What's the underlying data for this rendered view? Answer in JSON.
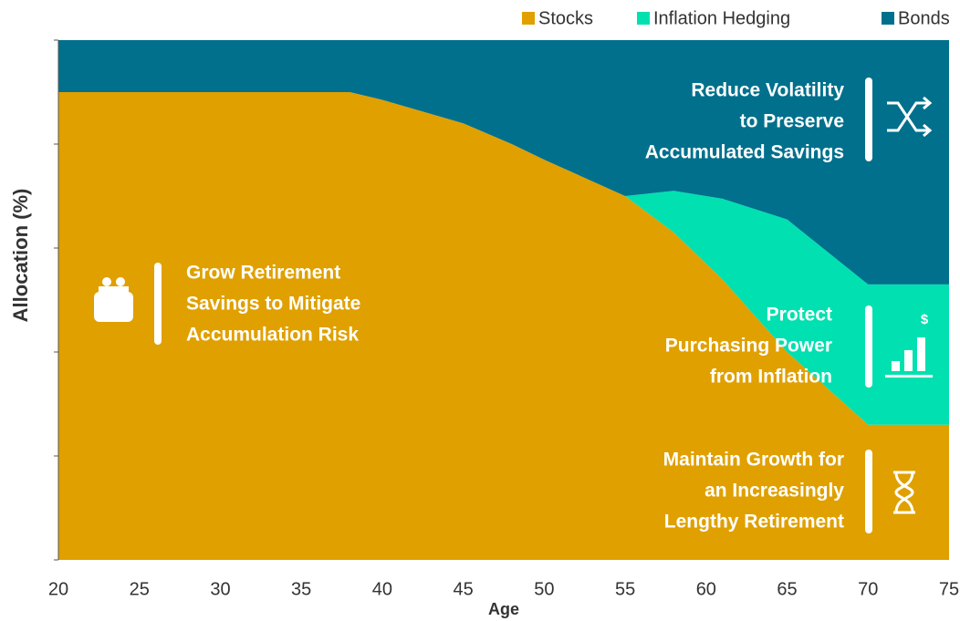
{
  "chart_data": {
    "type": "stacked_area",
    "x": [
      20,
      25,
      30,
      35,
      38,
      40,
      45,
      48,
      50,
      55,
      58,
      60,
      61,
      65,
      70,
      75
    ],
    "series": [
      {
        "name": "Stocks",
        "color": "#e0a000",
        "values": [
          90,
          90,
          90,
          90,
          90,
          88.5,
          84,
          80,
          77,
          70,
          63,
          57,
          54,
          40,
          26,
          26
        ]
      },
      {
        "name": "Inflation Hedging",
        "color": "#00e0b0",
        "values": [
          0,
          0,
          0,
          0,
          0,
          0,
          0,
          0,
          0,
          0,
          8,
          13,
          15.5,
          25.5,
          27,
          27
        ]
      },
      {
        "name": "Bonds",
        "color": "#00708c",
        "values": [
          10,
          10,
          10,
          10,
          10,
          11.5,
          16,
          20,
          23,
          30,
          29,
          30,
          30.5,
          34.5,
          47,
          47
        ]
      }
    ],
    "xlim": [
      20,
      75
    ],
    "xticks": [
      20,
      25,
      30,
      35,
      40,
      45,
      50,
      55,
      60,
      65,
      70,
      75
    ],
    "ylim": [
      0,
      100
    ],
    "yticks": [
      0,
      20,
      40,
      60,
      80,
      100
    ],
    "xlabel": "Age",
    "ylabel": "Allocation  (%)",
    "annotations": [
      [
        "Grow Retirement",
        "Savings to Mitigate",
        "Accumulation Risk"
      ],
      [
        "Reduce Volatility",
        "to Preserve",
        "Accumulated Savings"
      ],
      [
        "Protect",
        "Purchasing Power",
        "from Inflation"
      ],
      [
        "Maintain Growth for",
        "an Increasingly",
        "Lengthy Retirement"
      ]
    ]
  }
}
